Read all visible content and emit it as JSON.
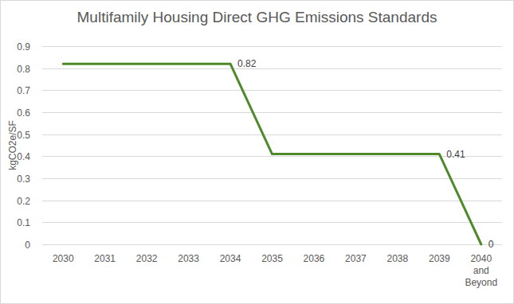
{
  "chart_data": {
    "type": "line",
    "title": "Multifamily Housing Direct GHG Emissions Standards",
    "y_label": "kgCO2e/SF",
    "categories": [
      "2030",
      "2031",
      "2032",
      "2033",
      "2034",
      "2035",
      "2036",
      "2037",
      "2038",
      "2039",
      "2040 and Beyond"
    ],
    "values": [
      0.82,
      0.82,
      0.82,
      0.82,
      0.82,
      0.41,
      0.41,
      0.41,
      0.41,
      0.41,
      0
    ],
    "value_labels": [
      null,
      null,
      null,
      null,
      "0.82",
      null,
      null,
      null,
      null,
      "0.41",
      "0"
    ],
    "data_labels": true,
    "color": "#4f8a2a",
    "ylim": [
      0,
      0.9
    ],
    "yticks": [
      0,
      0.1,
      0.2,
      0.3,
      0.4,
      0.5,
      0.6,
      0.7,
      0.8,
      0.9
    ],
    "grid": true
  }
}
